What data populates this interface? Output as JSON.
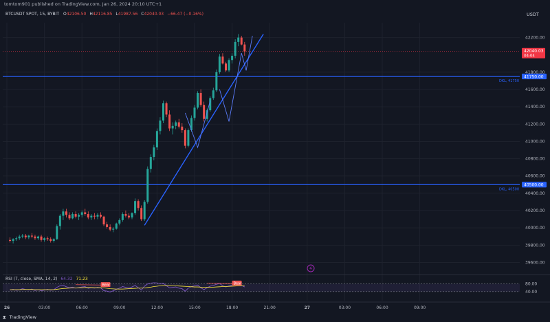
{
  "publisher": "tomtom901 published on TradingView.com, Jan 26, 2024 20:10 UTC+1",
  "footer_brand": "TradingView",
  "currency": "USDT",
  "colors": {
    "background": "#131722",
    "up": "#26a69a",
    "down": "#ef5350",
    "line_blue": "#2962ff",
    "trend": "#2962ff",
    "rsi": "#7e57c2",
    "rsi_ma": "#ffeb3b",
    "price_label": "#f23645"
  },
  "chart_data": {
    "type": "candlestick",
    "symbol_line": {
      "symbol": "BTCUSDT SPOT, 15, BYBIT",
      "o_label": "O",
      "o": "42106.50",
      "h_label": "H",
      "h": "42116.85",
      "l_label": "L",
      "l": "41987.56",
      "c_label": "C",
      "c": "42040.03",
      "change": "−66.47 (−0.16%)"
    },
    "ylim": [
      39540,
      42340
    ],
    "y_ticks": [
      "42200.00",
      "41800.00",
      "41600.00",
      "41400.00",
      "41200.00",
      "41000.00",
      "40800.00",
      "40600.00",
      "40400.00",
      "40200.00",
      "40000.00",
      "39800.00",
      "39600.00"
    ],
    "y_tick_values": [
      42200,
      41800,
      41600,
      41400,
      41200,
      41000,
      40800,
      40600,
      40400,
      40200,
      40000,
      39800,
      39600
    ],
    "x_ticks": [
      {
        "label": "26",
        "t": 0,
        "bold": true
      },
      {
        "label": "03:00",
        "t": 12
      },
      {
        "label": "06:00",
        "t": 24
      },
      {
        "label": "09:00",
        "t": 36
      },
      {
        "label": "12:00",
        "t": 48
      },
      {
        "label": "15:00",
        "t": 60
      },
      {
        "label": "18:00",
        "t": 72
      },
      {
        "label": "21:00",
        "t": 84
      },
      {
        "label": "27",
        "t": 96,
        "bold": true
      },
      {
        "label": "03:00",
        "t": 108
      },
      {
        "label": "06:00",
        "t": 120
      },
      {
        "label": "09:00",
        "t": 132
      }
    ],
    "current_price": {
      "value": 42040.03,
      "label": "42040.03",
      "countdown": "04:04"
    },
    "horizontal_lines": [
      {
        "name": "DKL, 41750",
        "value": 41750,
        "label": "41750.00"
      },
      {
        "name": "DKL, 40500",
        "value": 40500,
        "label": "40500.00"
      }
    ],
    "trendline": [
      {
        "t": 44,
        "v": 40030
      },
      {
        "t": 82,
        "v": 42240
      }
    ],
    "pattern_lines": [
      [
        {
          "t": 57,
          "v": 41330
        },
        {
          "t": 61,
          "v": 40930
        },
        {
          "t": 65,
          "v": 41470
        }
      ],
      [
        {
          "t": 68,
          "v": 41600
        },
        {
          "t": 71,
          "v": 41230
        },
        {
          "t": 75,
          "v": 42020
        }
      ],
      [
        {
          "t": 75,
          "v": 42020
        },
        {
          "t": 76.5,
          "v": 41820
        },
        {
          "t": 78.5,
          "v": 42220
        }
      ]
    ],
    "candles": [
      [
        39860,
        39890,
        39830,
        39850
      ],
      [
        39850,
        39880,
        39820,
        39870
      ],
      [
        39870,
        39900,
        39850,
        39880
      ],
      [
        39880,
        39920,
        39860,
        39900
      ],
      [
        39900,
        39930,
        39880,
        39910
      ],
      [
        39910,
        39930,
        39870,
        39890
      ],
      [
        39890,
        39920,
        39870,
        39910
      ],
      [
        39910,
        39940,
        39880,
        39900
      ],
      [
        39900,
        39920,
        39860,
        39880
      ],
      [
        39880,
        39910,
        39860,
        39900
      ],
      [
        39900,
        39920,
        39840,
        39860
      ],
      [
        39860,
        39890,
        39840,
        39880
      ],
      [
        39880,
        39900,
        39850,
        39870
      ],
      [
        39870,
        39890,
        39830,
        39850
      ],
      [
        39850,
        39880,
        39830,
        39870
      ],
      [
        39870,
        40040,
        39860,
        40020
      ],
      [
        40020,
        40160,
        39980,
        40140
      ],
      [
        40140,
        40220,
        40090,
        40190
      ],
      [
        40190,
        40220,
        40120,
        40150
      ],
      [
        40150,
        40180,
        40090,
        40110
      ],
      [
        40110,
        40180,
        40100,
        40160
      ],
      [
        40160,
        40190,
        40110,
        40130
      ],
      [
        40130,
        40170,
        40090,
        40150
      ],
      [
        40150,
        40200,
        40120,
        40180
      ],
      [
        40180,
        40220,
        40140,
        40160
      ],
      [
        40160,
        40190,
        40100,
        40120
      ],
      [
        40120,
        40160,
        40090,
        40140
      ],
      [
        40140,
        40170,
        40100,
        40130
      ],
      [
        40130,
        40170,
        40100,
        40150
      ],
      [
        40150,
        40180,
        40110,
        40130
      ],
      [
        40130,
        40140,
        40020,
        40040
      ],
      [
        40040,
        40070,
        39990,
        40010
      ],
      [
        40010,
        40040,
        39960,
        39980
      ],
      [
        39980,
        40010,
        39950,
        39990
      ],
      [
        39990,
        40060,
        39980,
        40050
      ],
      [
        40050,
        40110,
        40030,
        40090
      ],
      [
        40090,
        40180,
        40070,
        40160
      ],
      [
        40160,
        40200,
        40120,
        40140
      ],
      [
        40140,
        40170,
        40100,
        40120
      ],
      [
        40120,
        40180,
        40100,
        40170
      ],
      [
        40170,
        40340,
        40150,
        40310
      ],
      [
        40310,
        40330,
        40200,
        40230
      ],
      [
        40230,
        40260,
        40080,
        40100
      ],
      [
        40100,
        40320,
        40080,
        40300
      ],
      [
        40300,
        40710,
        40280,
        40680
      ],
      [
        40680,
        40850,
        40640,
        40820
      ],
      [
        40820,
        40960,
        40780,
        40930
      ],
      [
        40930,
        41150,
        40900,
        41120
      ],
      [
        41120,
        41280,
        41080,
        41240
      ],
      [
        41240,
        41470,
        41210,
        41440
      ],
      [
        41440,
        41460,
        41280,
        41310
      ],
      [
        41310,
        41360,
        41120,
        41150
      ],
      [
        41150,
        41220,
        41080,
        41180
      ],
      [
        41180,
        41240,
        41140,
        41220
      ],
      [
        41220,
        41260,
        41150,
        41170
      ],
      [
        41170,
        41210,
        41100,
        41130
      ],
      [
        41130,
        41150,
        40920,
        40950
      ],
      [
        40950,
        41150,
        40930,
        41130
      ],
      [
        41130,
        41300,
        41110,
        41270
      ],
      [
        41270,
        41420,
        41240,
        41390
      ],
      [
        41390,
        41580,
        41370,
        41560
      ],
      [
        41560,
        41600,
        41400,
        41420
      ],
      [
        41420,
        41460,
        41230,
        41260
      ],
      [
        41260,
        41380,
        41230,
        41360
      ],
      [
        41360,
        41520,
        41340,
        41500
      ],
      [
        41500,
        41620,
        41480,
        41590
      ],
      [
        41590,
        41830,
        41570,
        41800
      ],
      [
        41800,
        42010,
        41780,
        41980
      ],
      [
        41980,
        42020,
        41890,
        41900
      ],
      [
        41900,
        41920,
        41800,
        41820
      ],
      [
        41820,
        41960,
        41800,
        41940
      ],
      [
        41940,
        42020,
        41900,
        41990
      ],
      [
        41990,
        42180,
        41960,
        42150
      ],
      [
        42150,
        42240,
        42100,
        42200
      ],
      [
        42200,
        42220,
        42110,
        42120
      ],
      [
        42120,
        42150,
        41990,
        42040
      ]
    ]
  },
  "rsi": {
    "label": "RSI (7, close, SMA, 14, 2)",
    "v1": "64.32",
    "v2": "71.23",
    "ticks": [
      "80.00",
      "40.00"
    ],
    "tick_values": [
      80,
      40
    ],
    "divergence_labels": [
      {
        "text": "Bear",
        "t": 30,
        "v": 78
      },
      {
        "text": "Bear",
        "t": 72,
        "v": 86
      }
    ],
    "values": [
      48,
      52,
      47,
      50,
      55,
      51,
      49,
      53,
      46,
      50,
      44,
      48,
      52,
      47,
      50,
      62,
      70,
      73,
      65,
      60,
      63,
      58,
      61,
      64,
      66,
      57,
      60,
      58,
      62,
      59,
      45,
      42,
      38,
      44,
      52,
      58,
      66,
      62,
      58,
      64,
      72,
      60,
      48,
      68,
      80,
      84,
      86,
      85,
      82,
      84,
      70,
      60,
      62,
      64,
      58,
      55,
      42,
      58,
      66,
      70,
      74,
      60,
      50,
      60,
      68,
      72,
      78,
      82,
      70,
      64,
      70,
      74,
      80,
      82,
      72,
      64
    ],
    "ma_values": [
      50,
      50,
      50,
      50,
      51,
      51,
      51,
      51,
      50,
      50,
      50,
      50,
      50,
      50,
      50,
      52,
      54,
      56,
      57,
      58,
      59,
      59,
      60,
      60,
      61,
      61,
      61,
      60,
      60,
      60,
      59,
      57,
      55,
      54,
      53,
      53,
      53,
      54,
      55,
      56,
      57,
      58,
      58,
      59,
      61,
      63,
      66,
      68,
      70,
      72,
      72,
      72,
      71,
      70,
      69,
      68,
      67,
      66,
      65,
      64,
      64,
      63,
      62,
      62,
      62,
      63,
      64,
      65,
      66,
      66,
      67,
      68,
      69,
      70,
      70,
      70
    ]
  }
}
